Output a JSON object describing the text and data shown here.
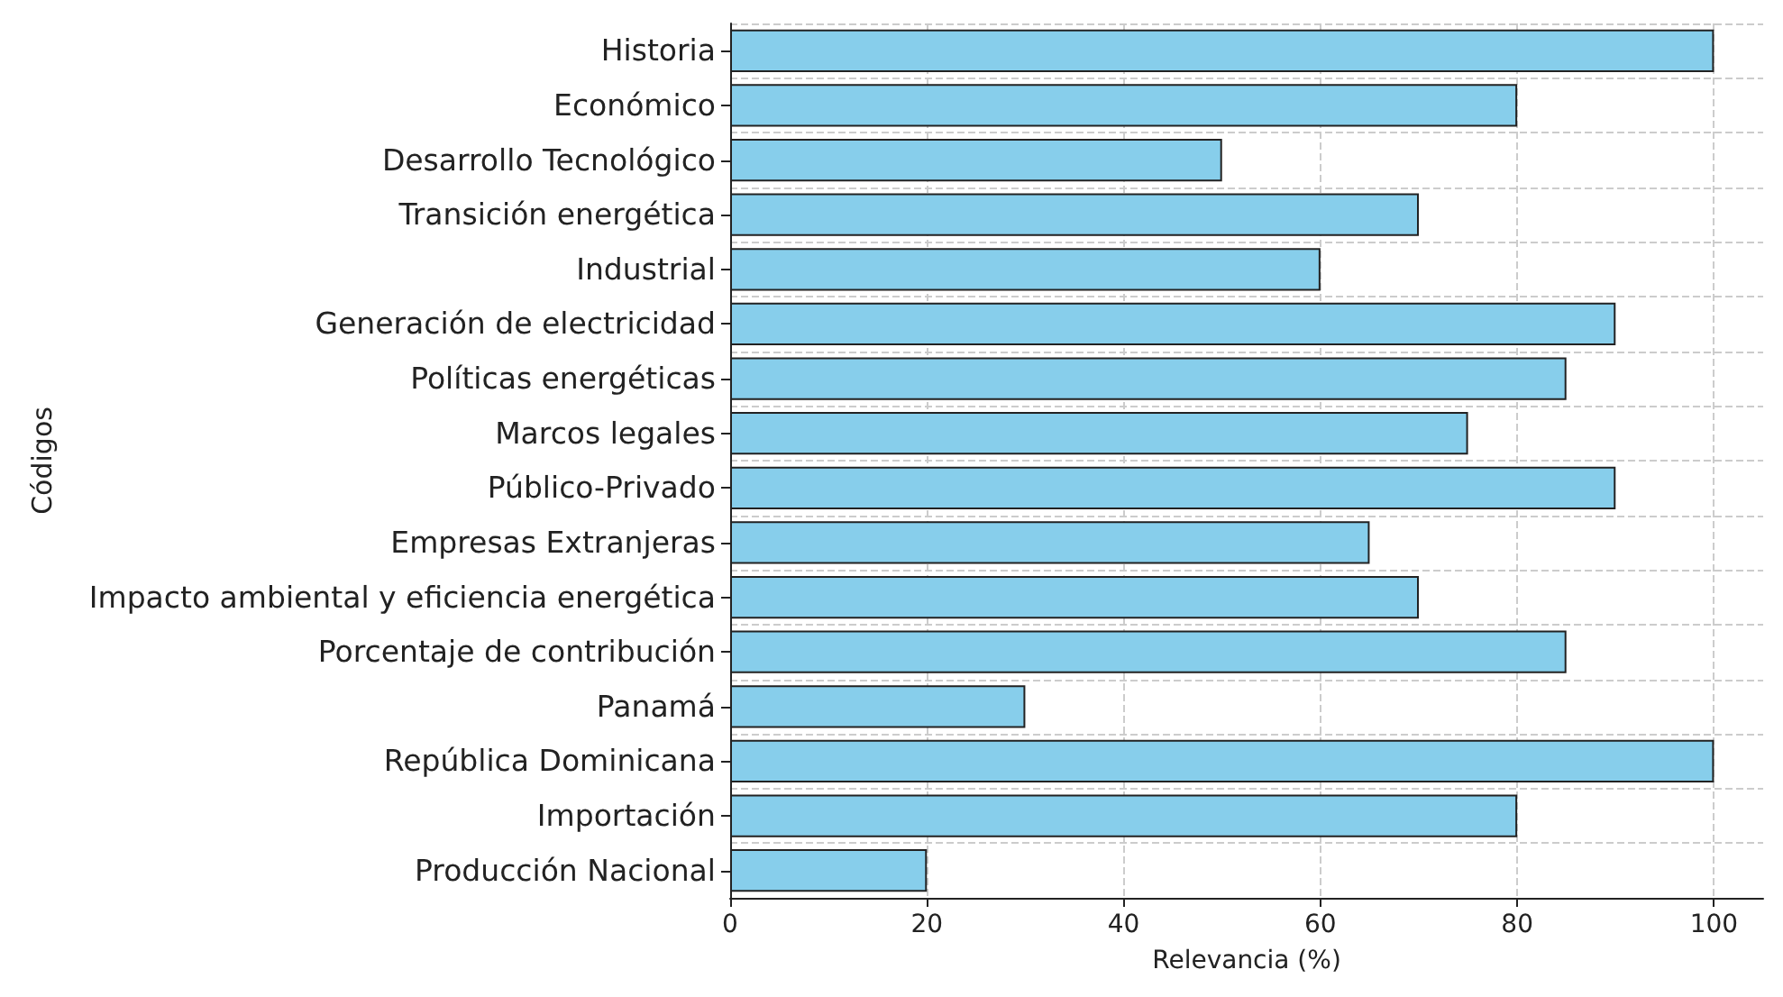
{
  "chart_data": {
    "type": "bar",
    "orientation": "horizontal",
    "xlabel": "Relevancia (%)",
    "ylabel": "Códigos",
    "categories": [
      "Historia",
      "Económico",
      "Desarrollo Tecnológico",
      "Transición energética",
      "Industrial",
      "Generación de electricidad",
      "Políticas energéticas",
      "Marcos legales",
      "Público-Privado",
      "Empresas Extranjeras",
      "Impacto ambiental y eficiencia energética",
      "Porcentaje de contribución",
      "Panamá",
      "República Dominicana",
      "Importación",
      "Producción Nacional"
    ],
    "values": [
      100,
      80,
      50,
      70,
      60,
      90,
      85,
      75,
      90,
      65,
      70,
      85,
      30,
      100,
      80,
      20
    ],
    "color": "#87ceeb",
    "xlim": [
      0,
      105
    ],
    "xticks": [
      0,
      20,
      40,
      60,
      80,
      100
    ],
    "grid": true
  }
}
